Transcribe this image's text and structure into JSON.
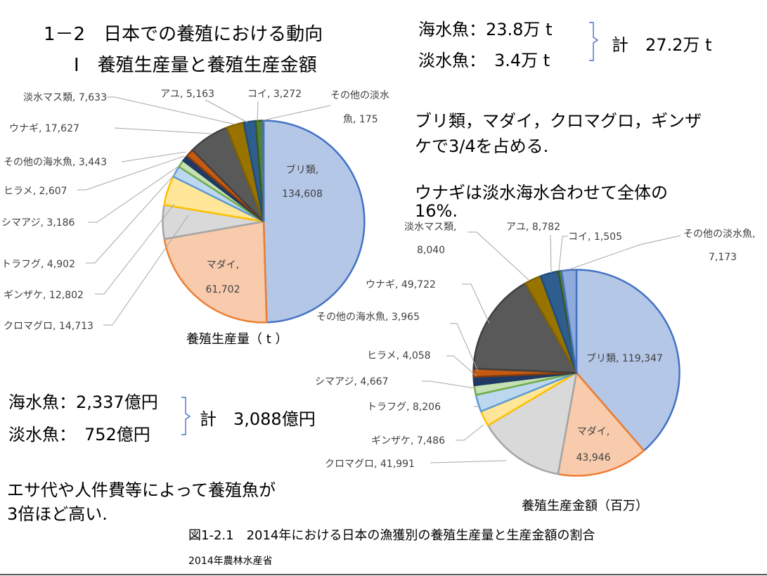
{
  "header": {
    "title": "1－2　日本での養殖における動向",
    "subtitle": "Ⅰ　養殖生産量と養殖生産金額"
  },
  "volume_summary": {
    "seawater": "海水魚：23.8万 t",
    "freshwater": "淡水魚：　3.4万 t",
    "total": "計　27.2万 t"
  },
  "value_summary": {
    "seawater": "海水魚：2,337億円",
    "freshwater": "淡水魚：　752億円",
    "total": "計　3,088億円"
  },
  "notes": {
    "share_line1": "ブリ類，マダイ，クロマグロ，ギンザ",
    "share_line2": "ケで3/4を占める.",
    "eel_line1": "ウナギは淡水海水合わせて全体の",
    "eel_line2": "16%.",
    "cost_line1": "エサ代や人件費等によって養殖魚が",
    "cost_line2": "3倍ほど高い."
  },
  "figure": {
    "caption": "図1-2.1　2014年における日本の漁獲別の養殖生産量と生産金額の割合",
    "source": "2014年農林水産省"
  },
  "chart_data": [
    {
      "type": "pie",
      "title": "養殖生産量（ t ）",
      "slices": [
        {
          "label": "ブリ類",
          "value": 134608,
          "color": "#b4c7e7",
          "edge": "#4472c4"
        },
        {
          "label": "マダイ",
          "value": 61702,
          "color": "#f8cbad",
          "edge": "#ed7d31"
        },
        {
          "label": "クロマグロ",
          "value": 14713,
          "color": "#d9d9d9",
          "edge": "#a5a5a5"
        },
        {
          "label": "ギンザケ",
          "value": 12802,
          "color": "#ffe699",
          "edge": "#ffc000"
        },
        {
          "label": "トラフグ",
          "value": 4902,
          "color": "#bdd7ee",
          "edge": "#5b9bd5"
        },
        {
          "label": "シマアジ",
          "value": 3186,
          "color": "#c5e0b4",
          "edge": "#70ad47"
        },
        {
          "label": "ヒラメ",
          "value": 2607,
          "color": "#1f3864",
          "edge": "#1f3864"
        },
        {
          "label": "その他の海水魚",
          "value": 3443,
          "color": "#c55a11",
          "edge": "#843c0c"
        },
        {
          "label": "ウナギ",
          "value": 17627,
          "color": "#595959",
          "edge": "#404040"
        },
        {
          "label": "淡水マス類",
          "value": 7633,
          "color": "#997300",
          "edge": "#7f6000"
        },
        {
          "label": "アユ",
          "value": 5163,
          "color": "#2e5d8f",
          "edge": "#1f4e79"
        },
        {
          "label": "コイ",
          "value": 3272,
          "color": "#548235",
          "edge": "#385723"
        },
        {
          "label": "その他の淡水魚",
          "value": 175,
          "color": "#8faadc",
          "edge": "#4472c4"
        }
      ],
      "labels_text": [
        {
          "name": "ブリ類,",
          "value": "134,608"
        },
        {
          "name": "マダイ,",
          "value": "61,702"
        },
        {
          "text": "クロマグロ, 14,713"
        },
        {
          "text": "ギンザケ, 12,802"
        },
        {
          "text": "トラフグ, 4,902"
        },
        {
          "text": "シマアジ, 3,186"
        },
        {
          "text": "ヒラメ, 2,607"
        },
        {
          "text": "その他の海水魚, 3,443"
        },
        {
          "text": "ウナギ, 17,627"
        },
        {
          "text": "淡水マス類, 7,633"
        },
        {
          "text": "アユ, 5,163"
        },
        {
          "text": "コイ, 3,272"
        },
        {
          "line1": "その他の淡水",
          "line2": "魚, 175"
        }
      ]
    },
    {
      "type": "pie",
      "title": "養殖生産金額（百万）",
      "slices": [
        {
          "label": "ブリ類",
          "value": 119347,
          "color": "#b4c7e7",
          "edge": "#4472c4"
        },
        {
          "label": "マダイ",
          "value": 43946,
          "color": "#f8cbad",
          "edge": "#ed7d31"
        },
        {
          "label": "クロマグロ",
          "value": 41991,
          "color": "#d9d9d9",
          "edge": "#a5a5a5"
        },
        {
          "label": "ギンザケ",
          "value": 7486,
          "color": "#ffe699",
          "edge": "#ffc000"
        },
        {
          "label": "トラフグ",
          "value": 8206,
          "color": "#bdd7ee",
          "edge": "#5b9bd5"
        },
        {
          "label": "シマアジ",
          "value": 4667,
          "color": "#c5e0b4",
          "edge": "#70ad47"
        },
        {
          "label": "ヒラメ",
          "value": 4058,
          "color": "#1f3864",
          "edge": "#1f3864"
        },
        {
          "label": "その他の海水魚",
          "value": 3965,
          "color": "#c55a11",
          "edge": "#843c0c"
        },
        {
          "label": "ウナギ",
          "value": 49722,
          "color": "#595959",
          "edge": "#404040"
        },
        {
          "label": "淡水マス類",
          "value": 8040,
          "color": "#997300",
          "edge": "#7f6000"
        },
        {
          "label": "アユ",
          "value": 8782,
          "color": "#2e5d8f",
          "edge": "#1f4e79"
        },
        {
          "label": "コイ",
          "value": 1505,
          "color": "#548235",
          "edge": "#385723"
        },
        {
          "label": "その他の淡水魚",
          "value": 7173,
          "color": "#8faadc",
          "edge": "#4472c4"
        }
      ],
      "labels_text": [
        {
          "text": "ブリ類, 119,347"
        },
        {
          "name": "マダイ,",
          "value": "43,946"
        },
        {
          "text": "クロマグロ, 41,991"
        },
        {
          "text": "ギンザケ, 7,486"
        },
        {
          "text": "トラフグ, 8,206"
        },
        {
          "text": "シマアジ, 4,667"
        },
        {
          "text": "ヒラメ, 4,058"
        },
        {
          "text": "その他の海水魚, 3,965"
        },
        {
          "text": "ウナギ, 49,722"
        },
        {
          "line1": "淡水マス類,",
          "line2": "8,040"
        },
        {
          "text": "アユ, 8,782"
        },
        {
          "text": "コイ, 1,505"
        },
        {
          "line1": "その他の淡水魚,",
          "line2": "7,173"
        }
      ]
    }
  ]
}
